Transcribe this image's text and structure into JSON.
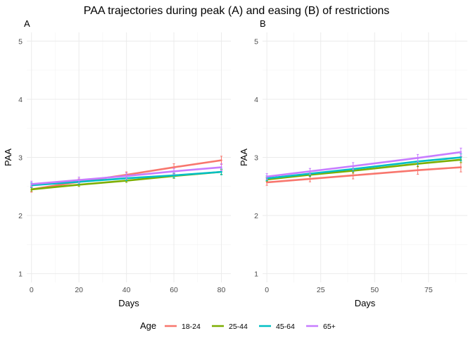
{
  "title": "PAA trajectories during peak (A) and easing (B) of restrictions",
  "legend": {
    "title": "Age",
    "position": "bottom"
  },
  "chart_data": [
    {
      "panel": "A",
      "type": "line",
      "xlabel": "Days",
      "ylabel": "PAA",
      "xlim": [
        -2,
        84
      ],
      "ylim": [
        0.85,
        5.15
      ],
      "xticks": [
        0,
        20,
        40,
        60,
        80
      ],
      "yticks": [
        1,
        2,
        3,
        4,
        5
      ],
      "grid": true,
      "x": [
        0,
        20,
        40,
        60,
        80
      ],
      "series": [
        {
          "name": "18-24",
          "color": "#F8766D",
          "values": [
            2.45,
            2.58,
            2.7,
            2.83,
            2.95
          ],
          "err": [
            0.05,
            0.05,
            0.05,
            0.06,
            0.07
          ]
        },
        {
          "name": "25-44",
          "color": "#7CAE00",
          "values": [
            2.45,
            2.53,
            2.6,
            2.68,
            2.75
          ],
          "err": [
            0.03,
            0.03,
            0.03,
            0.04,
            0.04
          ]
        },
        {
          "name": "45-64",
          "color": "#00BFC4",
          "values": [
            2.52,
            2.58,
            2.64,
            2.69,
            2.75
          ],
          "err": [
            0.04,
            0.04,
            0.04,
            0.04,
            0.05
          ]
        },
        {
          "name": "65+",
          "color": "#C77CFF",
          "values": [
            2.54,
            2.61,
            2.68,
            2.76,
            2.83
          ],
          "err": [
            0.05,
            0.05,
            0.05,
            0.05,
            0.06
          ]
        }
      ]
    },
    {
      "panel": "B",
      "type": "line",
      "xlabel": "Days",
      "ylabel": "PAA",
      "xlim": [
        -2,
        93
      ],
      "ylim": [
        0.85,
        5.15
      ],
      "xticks": [
        0,
        25,
        50,
        75
      ],
      "yticks": [
        1,
        2,
        3,
        4,
        5
      ],
      "grid": true,
      "x": [
        0,
        20,
        40,
        70,
        90
      ],
      "series": [
        {
          "name": "18-24",
          "color": "#F8766D",
          "values": [
            2.57,
            2.63,
            2.69,
            2.78,
            2.83
          ],
          "err": [
            0.05,
            0.05,
            0.06,
            0.07,
            0.08
          ]
        },
        {
          "name": "25-44",
          "color": "#7CAE00",
          "values": [
            2.62,
            2.7,
            2.77,
            2.89,
            2.96
          ],
          "err": [
            0.03,
            0.03,
            0.04,
            0.05,
            0.05
          ]
        },
        {
          "name": "45-64",
          "color": "#00BFC4",
          "values": [
            2.64,
            2.72,
            2.8,
            2.93,
            3.0
          ],
          "err": [
            0.04,
            0.04,
            0.04,
            0.05,
            0.06
          ]
        },
        {
          "name": "65+",
          "color": "#C77CFF",
          "values": [
            2.67,
            2.76,
            2.85,
            2.99,
            3.09
          ],
          "err": [
            0.05,
            0.05,
            0.06,
            0.06,
            0.07
          ]
        }
      ]
    }
  ]
}
